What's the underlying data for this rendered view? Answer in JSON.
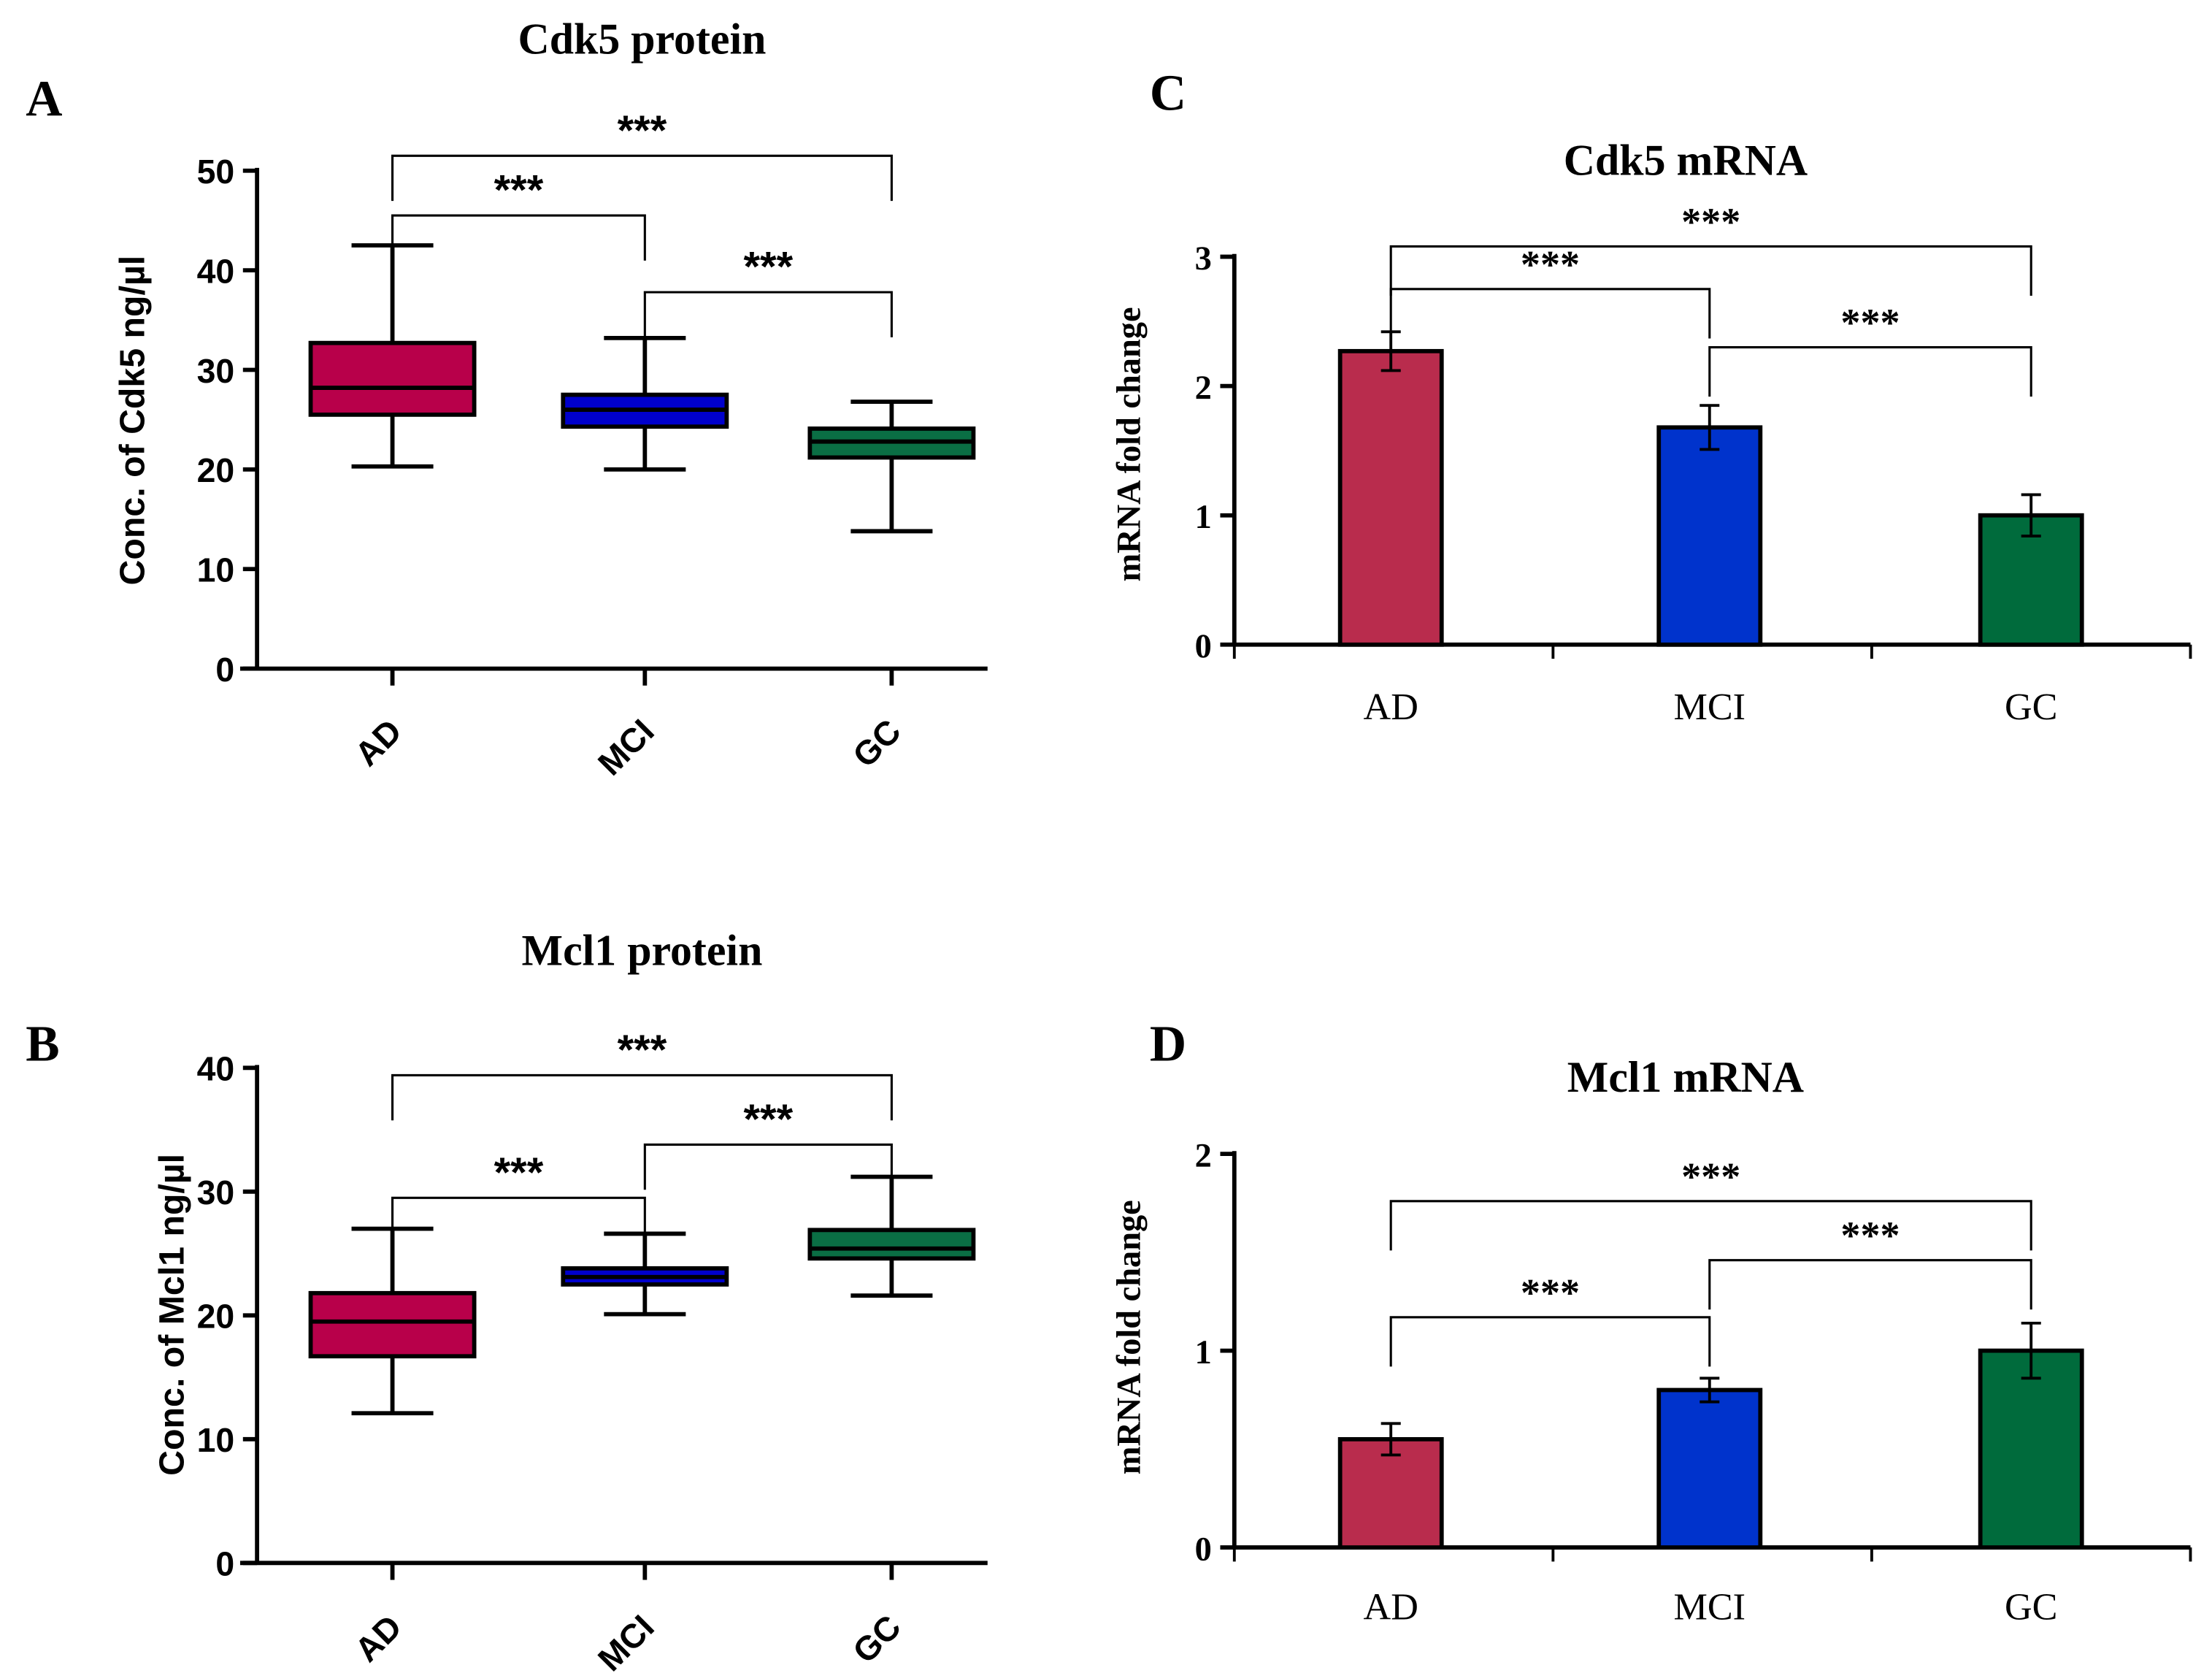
{
  "colors": {
    "AD_box": "#b8004a",
    "MCI_box": "#0000cc",
    "GC_box": "#0a6e44",
    "AD_bar": "#b92c4d",
    "MCI_bar": "#0033cc",
    "GC_bar": "#006b3c"
  },
  "chart_data": [
    {
      "panel": "A",
      "type": "box",
      "title": "Cdk5 protein",
      "ylabel": "Conc. of Cdk5 ng/µl",
      "ylim": [
        0,
        50
      ],
      "yticks": [
        "0",
        "10",
        "20",
        "30",
        "40",
        "50"
      ],
      "categories": [
        "AD",
        "MCI",
        "GC"
      ],
      "boxes": [
        {
          "min": 20.3,
          "q1": 25.5,
          "median": 28.2,
          "q3": 32.7,
          "max": 42.5
        },
        {
          "min": 20.0,
          "q1": 24.3,
          "median": 26.0,
          "q3": 27.5,
          "max": 33.2
        },
        {
          "min": 13.8,
          "q1": 21.2,
          "median": 22.8,
          "q3": 24.1,
          "max": 26.8
        }
      ],
      "significance": [
        {
          "from": 0,
          "to": 1,
          "label": "***",
          "level": 45.5
        },
        {
          "from": 0,
          "to": 2,
          "label": "***",
          "level": 51.5
        },
        {
          "from": 1,
          "to": 2,
          "label": "***",
          "level": 37.8
        }
      ]
    },
    {
      "panel": "B",
      "type": "box",
      "title": "Mcl1 protein",
      "ylabel": "Conc. of Mcl1 ng/µl",
      "ylim": [
        0,
        40
      ],
      "yticks": [
        "0",
        "10",
        "20",
        "30",
        "40"
      ],
      "categories": [
        "AD",
        "MCI",
        "GC"
      ],
      "boxes": [
        {
          "min": 12.1,
          "q1": 16.7,
          "median": 19.5,
          "q3": 21.8,
          "max": 27.0
        },
        {
          "min": 20.1,
          "q1": 22.5,
          "median": 23.1,
          "q3": 23.8,
          "max": 26.6
        },
        {
          "min": 21.6,
          "q1": 24.6,
          "median": 25.4,
          "q3": 26.9,
          "max": 31.2
        }
      ],
      "significance": [
        {
          "from": 0,
          "to": 1,
          "label": "***",
          "level": 29.5
        },
        {
          "from": 0,
          "to": 2,
          "label": "***",
          "level": 39.4
        },
        {
          "from": 1,
          "to": 2,
          "label": "***",
          "level": 33.8
        }
      ]
    },
    {
      "panel": "C",
      "type": "bar",
      "title": "Cdk5 mRNA",
      "ylabel": "mRNA fold change",
      "ylim": [
        0,
        3
      ],
      "yticks": [
        "0",
        "1",
        "2",
        "3"
      ],
      "categories": [
        "AD",
        "MCI",
        "GC"
      ],
      "values": [
        2.27,
        1.68,
        1.0
      ],
      "errors": [
        0.15,
        0.17,
        0.16
      ],
      "significance": [
        {
          "from": 0,
          "to": 1,
          "label": "***",
          "level": 2.75
        },
        {
          "from": 0,
          "to": 2,
          "label": "***",
          "level": 3.08
        },
        {
          "from": 1,
          "to": 2,
          "label": "***",
          "level": 2.3
        }
      ]
    },
    {
      "panel": "D",
      "type": "bar",
      "title": "Mcl1 mRNA",
      "ylabel": "mRNA fold change",
      "ylim": [
        0,
        2
      ],
      "yticks": [
        "0",
        "1",
        "2"
      ],
      "categories": [
        "AD",
        "MCI",
        "GC"
      ],
      "values": [
        0.55,
        0.8,
        1.0
      ],
      "errors": [
        0.08,
        0.06,
        0.14
      ],
      "significance": [
        {
          "from": 0,
          "to": 1,
          "label": "***",
          "level": 1.17
        },
        {
          "from": 0,
          "to": 2,
          "label": "***",
          "level": 1.76
        },
        {
          "from": 1,
          "to": 2,
          "label": "***",
          "level": 1.46
        }
      ]
    }
  ]
}
